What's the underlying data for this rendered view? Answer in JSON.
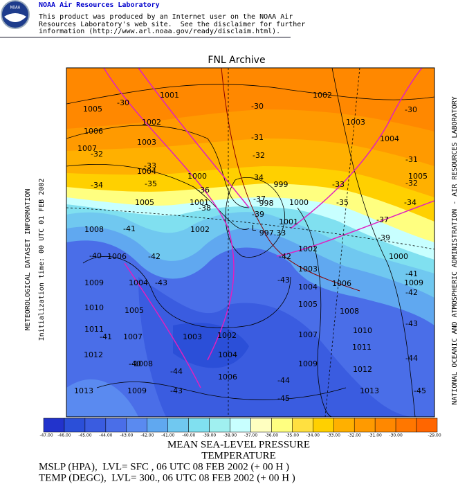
{
  "header": {
    "title": "NOAA Air Resources Laboratory",
    "lines": [
      "This product was produced by an Internet user on the NOAA Air",
      "Resources Laboratory's web site.  See the disclaimer for further",
      "information (http://www.arl.noaa.gov/ready/disclaim.html)."
    ],
    "logo": "NOAA"
  },
  "map": {
    "title": "FNL Archive",
    "left_labels": [
      "METEOROLOGICAL DATASET INFORMATION",
      "Initialization time: 00 UTC 01 FEB 2002"
    ],
    "right_label": "NATIONAL OCEANIC AND ATMOSPHERIC ADMINISTRATION - AIR RESOURCES LABORATORY",
    "contour_labels": [
      "1001",
      "-30",
      "1005",
      "1002",
      "1006",
      "1003",
      "1007",
      "-32",
      "-33",
      "1004",
      "1000",
      "-34",
      "-35",
      "-36",
      "1001",
      "1002",
      "-30",
      "-30",
      "1003",
      "-31",
      "1004",
      "-32",
      "-31",
      "-34",
      "999",
      "-33",
      "1005",
      "-32",
      "1005",
      "-38",
      "998",
      "1000",
      "-35",
      "-34",
      "-37",
      "1001",
      "-37",
      "-39",
      "1002",
      "-41",
      "1008",
      "997.33",
      "1002",
      "-39",
      "1006",
      "-42",
      "-40",
      "-42",
      "1000",
      "1009",
      "1004",
      "-43",
      "-43",
      "1003",
      "1004",
      "1006",
      "-41",
      "1009",
      "-42",
      "1010",
      "1005",
      "1005",
      "1008",
      "1011",
      "-41",
      "1007",
      "1003",
      "1002",
      "1007",
      "1010",
      "-43",
      "1011",
      "1012",
      "-40",
      "1008",
      "1004",
      "1009",
      "1012",
      "-44",
      "-44",
      "1006",
      "-44",
      "1013",
      "1009",
      "-43",
      "1013",
      "-45",
      "-45",
      "L"
    ]
  },
  "colorbar": {
    "labels": [
      "-47.00",
      "-46.00",
      "-45.00",
      "-44.00",
      "-43.00",
      "-42.00",
      "-41.00",
      "-40.00",
      "-39.00",
      "-38.00",
      "-37.00",
      "-36.00",
      "-35.00",
      "-34.00",
      "-33.00",
      "-32.00",
      "-31.00",
      "-30.00",
      "-29.00"
    ]
  },
  "footer": {
    "lines": [
      "MEAN SEA-LEVEL PRESSURE",
      "TEMPERATURE",
      "MSLP (HPA),  LVL= SFC , 06 UTC 08 FEB 2002 (+ 00 H )",
      "TEMP (DEGC),  LVL= 300., 06 UTC 08 FEB 2002 (+ 00 H )"
    ]
  }
}
